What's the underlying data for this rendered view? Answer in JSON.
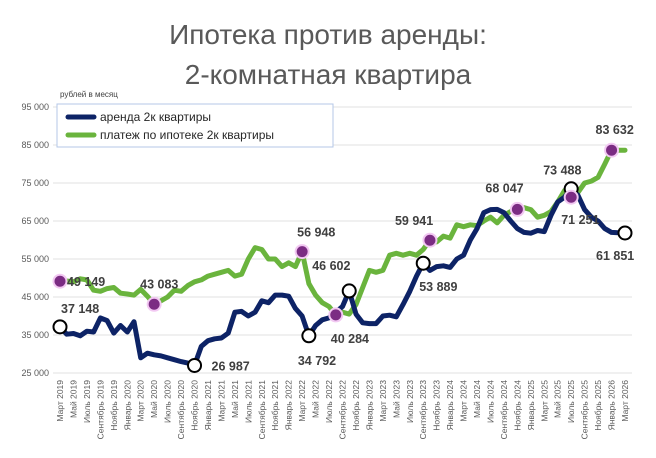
{
  "chart_data": {
    "type": "line",
    "title": "Ипотека против аренды:",
    "subtitle": "2-комнатная квартира",
    "ylabel": "рублей в месяц",
    "ylim": [
      25000,
      95000
    ],
    "yticks": [
      "25 000",
      "35 000",
      "45 000",
      "55 000",
      "65 000",
      "75 000",
      "85 000",
      "95 000"
    ],
    "grid": true,
    "legend_position": "top-left",
    "x": [
      "Март 2019",
      "Апр 2019",
      "Май 2019",
      "Июн 2019",
      "Июль 2019",
      "Авг 2019",
      "Сентябрь 2019",
      "Окт 2019",
      "Ноябрь 2019",
      "Дек 2019",
      "Январь 2020",
      "Фев 2020",
      "Март 2020",
      "Апр 2020",
      "Май 2020",
      "Июн 2020",
      "Июль 2020",
      "Авг 2020",
      "Сентябрь 2020",
      "Окт 2020",
      "Ноябрь 2020",
      "Дек 2020",
      "Январь 2021",
      "Фев 2021",
      "Март 2021",
      "Апр 2021",
      "Май 2021",
      "Июн 2021",
      "Июль 2021",
      "Авг 2021",
      "Сентябрь 2021",
      "Окт 2021",
      "Ноябрь 2021",
      "Дек 2021",
      "Январь 2022",
      "Фев 2022",
      "Март 2022",
      "Апр 2022",
      "Май 2022",
      "Июн 2022",
      "Июль 2022",
      "Авг 2022",
      "Сентябрь 2022",
      "Окт 2022",
      "Ноябрь 2022",
      "Дек 2022",
      "Январь 2023",
      "Фев 2023",
      "Март 2023",
      "Апр 2023",
      "Май 2023",
      "Июн 2023",
      "Июль 2023",
      "Авг 2023",
      "Сентябрь 2023",
      "Окт 2023",
      "Ноябрь 2023",
      "Дек 2023",
      "Январь 2024",
      "Фев 2024",
      "Март 2024",
      "Апр 2024",
      "Май 2024",
      "Июн 2024",
      "Июль 2024",
      "Авг 2024",
      "Сентябрь 2024",
      "Окт 2024",
      "Ноябрь 2024",
      "Дек 2024",
      "Январь 2025",
      "Фев 2025",
      "Март 2025",
      "Апр 2025",
      "Май 2025",
      "Июн 2025",
      "Июль 2025",
      "Авг 2025",
      "Сентябрь 2025",
      "Окт 2025",
      "Ноябрь 2025",
      "Дек 2025",
      "Январь 2026",
      "Фев 2026",
      "Март 2026"
    ],
    "xtick_labels": [
      "Март 2019",
      "Май 2019",
      "Июль 2019",
      "Сентябрь 2019",
      "Ноябрь 2019",
      "Январь 2020",
      "Март 2020",
      "Май 2020",
      "Июль 2020",
      "Сентябрь 2020",
      "Ноябрь 2020",
      "Январь 2021",
      "Март 2021",
      "Май 2021",
      "Июль 2021",
      "Сентябрь 2021",
      "Ноябрь 2021",
      "Январь 2022",
      "Март 2022",
      "Май 2022",
      "Июль 2022",
      "Сентябрь 2022",
      "Ноябрь 2022",
      "Январь 2023",
      "Март 2023",
      "Май 2023",
      "Июль 2023",
      "Сентябрь 2023",
      "Ноябрь 2023",
      "Январь 2024",
      "Март 2024",
      "Май 2024",
      "Июль 2024",
      "Сентябрь 2024",
      "Ноябрь 2024",
      "Январь 2025",
      "Март 2025",
      "Май 2025",
      "Июль 2025",
      "Сентябрь 2025",
      "Ноябрь 2025",
      "Январь 2026",
      "Март 2026"
    ],
    "series": [
      {
        "name": "аренда 2к квартиры",
        "color": "#0d2366",
        "values": [
          37148,
          35200,
          35400,
          34800,
          36000,
          35800,
          39500,
          38800,
          35500,
          37500,
          35800,
          38500,
          29000,
          30200,
          29800,
          29500,
          29000,
          28500,
          28000,
          27600,
          26987,
          32000,
          33500,
          34000,
          34200,
          35500,
          41000,
          41200,
          40000,
          41000,
          44000,
          43500,
          45500,
          45500,
          45200,
          42000,
          40000,
          34792,
          37500,
          39000,
          39500,
          41000,
          42500,
          46602,
          40500,
          38200,
          38000,
          38000,
          40000,
          40200,
          39800,
          43000,
          46500,
          50500,
          53889,
          52000,
          53000,
          53200,
          52800,
          55000,
          56000,
          60000,
          63000,
          67200,
          68000,
          68047,
          67200,
          65000,
          63000,
          62000,
          61800,
          62500,
          62200,
          66500,
          70000,
          71251,
          73488,
          71800,
          68000,
          66000,
          65000,
          63000,
          62000,
          61900,
          61851
        ],
        "labeled_points": [
          {
            "index": 0,
            "text": "37 148"
          },
          {
            "index": 20,
            "text": "26 987"
          },
          {
            "index": 37,
            "text": "34 792"
          },
          {
            "index": 43,
            "text": "46 602"
          },
          {
            "index": 54,
            "text": "53 889"
          },
          {
            "index": 76,
            "text": "73 488"
          },
          {
            "index": 84,
            "text": "61 851"
          }
        ]
      },
      {
        "name": "платеж по ипотеке 2к квартиры",
        "color": "#6ab43d",
        "values": [
          49149,
          49200,
          49000,
          49800,
          49500,
          46800,
          46500,
          47200,
          47500,
          46000,
          45800,
          45500,
          47000,
          45200,
          43083,
          44000,
          45000,
          46800,
          46500,
          48000,
          49000,
          49500,
          50500,
          51000,
          51500,
          52000,
          50500,
          51000,
          55000,
          58000,
          57500,
          55000,
          55000,
          53000,
          54000,
          53000,
          56948,
          48500,
          45500,
          43500,
          42500,
          40284,
          41000,
          40500,
          43000,
          47500,
          52000,
          51500,
          52000,
          56000,
          56500,
          56000,
          56500,
          56000,
          57500,
          59941,
          59500,
          61000,
          60500,
          64000,
          63500,
          64000,
          63800,
          65000,
          66000,
          64500,
          66500,
          67500,
          68047,
          68500,
          68000,
          66000,
          66500,
          67500,
          70000,
          73000,
          71251,
          72500,
          75000,
          75500,
          76500,
          80000,
          83632,
          83632,
          83632
        ],
        "labeled_points": [
          {
            "index": 0,
            "text": "49 149"
          },
          {
            "index": 14,
            "text": "43 083"
          },
          {
            "index": 36,
            "text": "56 948"
          },
          {
            "index": 41,
            "text": "40 284"
          },
          {
            "index": 55,
            "text": "59 941"
          },
          {
            "index": 68,
            "text": "68 047"
          },
          {
            "index": 76,
            "text": "71 251"
          },
          {
            "index": 82,
            "text": "83 632"
          }
        ]
      }
    ]
  }
}
